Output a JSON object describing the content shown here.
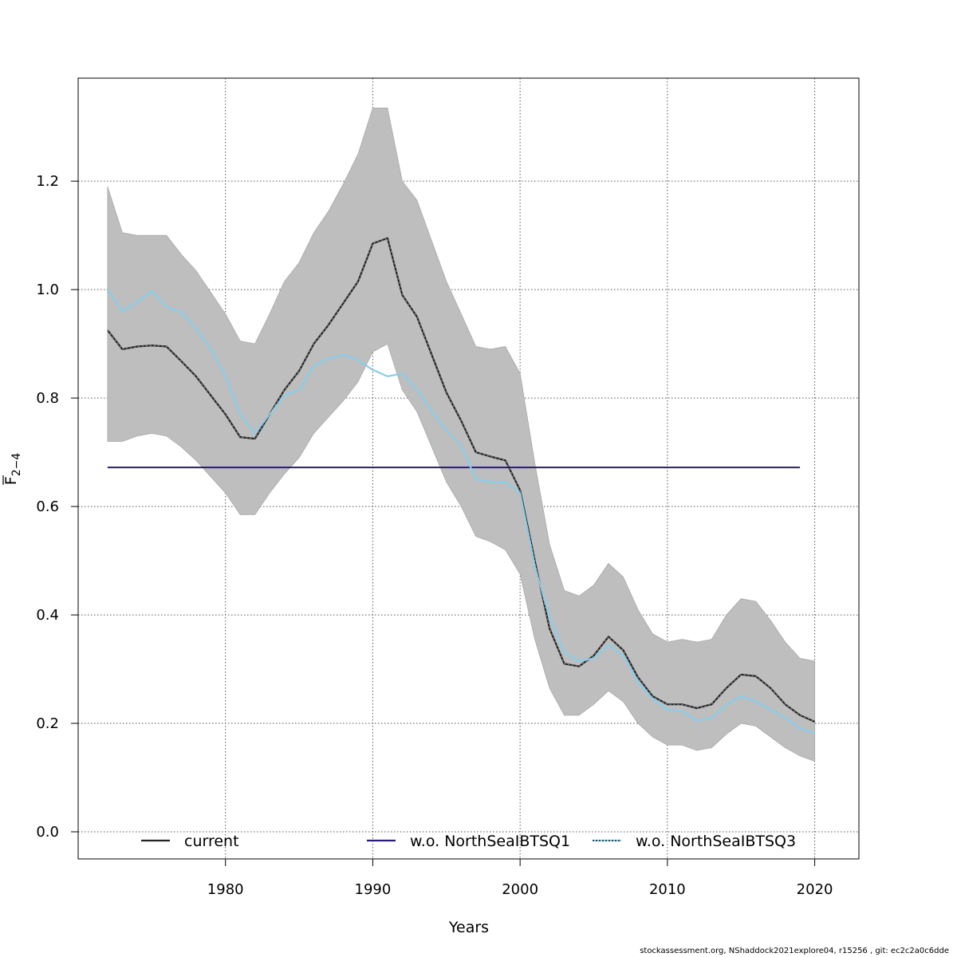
{
  "chart_data": {
    "type": "line",
    "xlabel": "Years",
    "ylabel_main": "F",
    "ylabel_sub": "2−4",
    "xlim": [
      1970,
      2023
    ],
    "ylim": [
      -0.05,
      1.39
    ],
    "xticks": [
      1980,
      1990,
      2000,
      2010,
      2020
    ],
    "yticks": [
      0.0,
      0.2,
      0.4,
      0.6,
      0.8,
      1.0,
      1.2
    ],
    "grid": true,
    "legend_position": "bottom",
    "band": {
      "color": "#bebebe",
      "x": [
        1972,
        1973,
        1974,
        1975,
        1976,
        1977,
        1978,
        1979,
        1980,
        1981,
        1982,
        1983,
        1984,
        1985,
        1986,
        1987,
        1988,
        1989,
        1990,
        1991,
        1992,
        1993,
        1994,
        1995,
        1996,
        1997,
        1998,
        1999,
        2000,
        2001,
        2002,
        2003,
        2004,
        2005,
        2006,
        2007,
        2008,
        2009,
        2010,
        2011,
        2012,
        2013,
        2014,
        2015,
        2016,
        2017,
        2018,
        2019,
        2020
      ],
      "upper": [
        1.19,
        1.105,
        1.1,
        1.1,
        1.1,
        1.065,
        1.035,
        0.995,
        0.955,
        0.905,
        0.9,
        0.955,
        1.015,
        1.05,
        1.105,
        1.145,
        1.195,
        1.25,
        1.335,
        1.335,
        1.2,
        1.165,
        1.09,
        1.015,
        0.955,
        0.895,
        0.89,
        0.895,
        0.845,
        0.68,
        0.53,
        0.445,
        0.435,
        0.455,
        0.495,
        0.47,
        0.41,
        0.365,
        0.35,
        0.355,
        0.35,
        0.355,
        0.4,
        0.43,
        0.425,
        0.39,
        0.35,
        0.32,
        0.315
      ],
      "lower": [
        0.72,
        0.72,
        0.73,
        0.735,
        0.73,
        0.71,
        0.685,
        0.655,
        0.625,
        0.585,
        0.585,
        0.625,
        0.66,
        0.69,
        0.735,
        0.765,
        0.795,
        0.83,
        0.885,
        0.9,
        0.815,
        0.775,
        0.71,
        0.645,
        0.6,
        0.545,
        0.535,
        0.52,
        0.475,
        0.355,
        0.265,
        0.215,
        0.215,
        0.235,
        0.26,
        0.24,
        0.2,
        0.175,
        0.16,
        0.16,
        0.15,
        0.155,
        0.18,
        0.2,
        0.195,
        0.175,
        0.155,
        0.14,
        0.13
      ]
    },
    "series": [
      {
        "name": "current",
        "color": "#222222",
        "x": [
          1972,
          1973,
          1974,
          1975,
          1976,
          1977,
          1978,
          1979,
          1980,
          1981,
          1982,
          1983,
          1984,
          1985,
          1986,
          1987,
          1988,
          1989,
          1990,
          1991,
          1992,
          1993,
          1994,
          1995,
          1996,
          1997,
          1998,
          1999,
          2000,
          2001,
          2002,
          2003,
          2004,
          2005,
          2006,
          2007,
          2008,
          2009,
          2010,
          2011,
          2012,
          2013,
          2014,
          2015,
          2016,
          2017,
          2018,
          2019,
          2020
        ],
        "y": [
          0.925,
          0.89,
          0.895,
          0.897,
          0.895,
          0.868,
          0.84,
          0.805,
          0.77,
          0.728,
          0.725,
          0.77,
          0.815,
          0.85,
          0.9,
          0.935,
          0.975,
          1.015,
          1.085,
          1.095,
          0.99,
          0.95,
          0.88,
          0.81,
          0.758,
          0.7,
          0.692,
          0.685,
          0.63,
          0.5,
          0.375,
          0.31,
          0.305,
          0.325,
          0.36,
          0.335,
          0.285,
          0.25,
          0.235,
          0.235,
          0.228,
          0.235,
          0.265,
          0.29,
          0.287,
          0.265,
          0.235,
          0.215,
          0.203
        ]
      },
      {
        "name": "w.o. NorthSeaIBTSQ1",
        "color": "#2b1a7a",
        "x": [
          1972,
          2019
        ],
        "y": [
          0.672,
          0.672
        ]
      },
      {
        "name": "w.o. NorthSeaIBTSQ3",
        "color": "#87ceeb",
        "x": [
          1972,
          1973,
          1974,
          1975,
          1976,
          1977,
          1978,
          1979,
          1980,
          1981,
          1982,
          1983,
          1984,
          1985,
          1986,
          1987,
          1988,
          1989,
          1990,
          1991,
          1992,
          1993,
          1994,
          1995,
          1996,
          1997,
          1998,
          1999,
          2000,
          2001,
          2002,
          2003,
          2004,
          2005,
          2006,
          2007,
          2008,
          2009,
          2010,
          2011,
          2012,
          2013,
          2014,
          2015,
          2016,
          2017,
          2018,
          2019,
          2020
        ],
        "y": [
          1.0,
          0.96,
          0.978,
          0.997,
          0.968,
          0.958,
          0.928,
          0.89,
          0.84,
          0.77,
          0.735,
          0.77,
          0.805,
          0.815,
          0.86,
          0.873,
          0.88,
          0.87,
          0.852,
          0.84,
          0.845,
          0.815,
          0.775,
          0.74,
          0.712,
          0.65,
          0.645,
          0.645,
          0.625,
          0.49,
          0.395,
          0.33,
          0.315,
          0.32,
          0.345,
          0.325,
          0.275,
          0.245,
          0.225,
          0.222,
          0.205,
          0.21,
          0.235,
          0.25,
          0.24,
          0.225,
          0.21,
          0.19,
          0.182
        ]
      }
    ]
  },
  "footer": {
    "text": "stockassessment.org, NShaddock2021explore04, r15256 , git: ec2c2a0c6dde"
  }
}
